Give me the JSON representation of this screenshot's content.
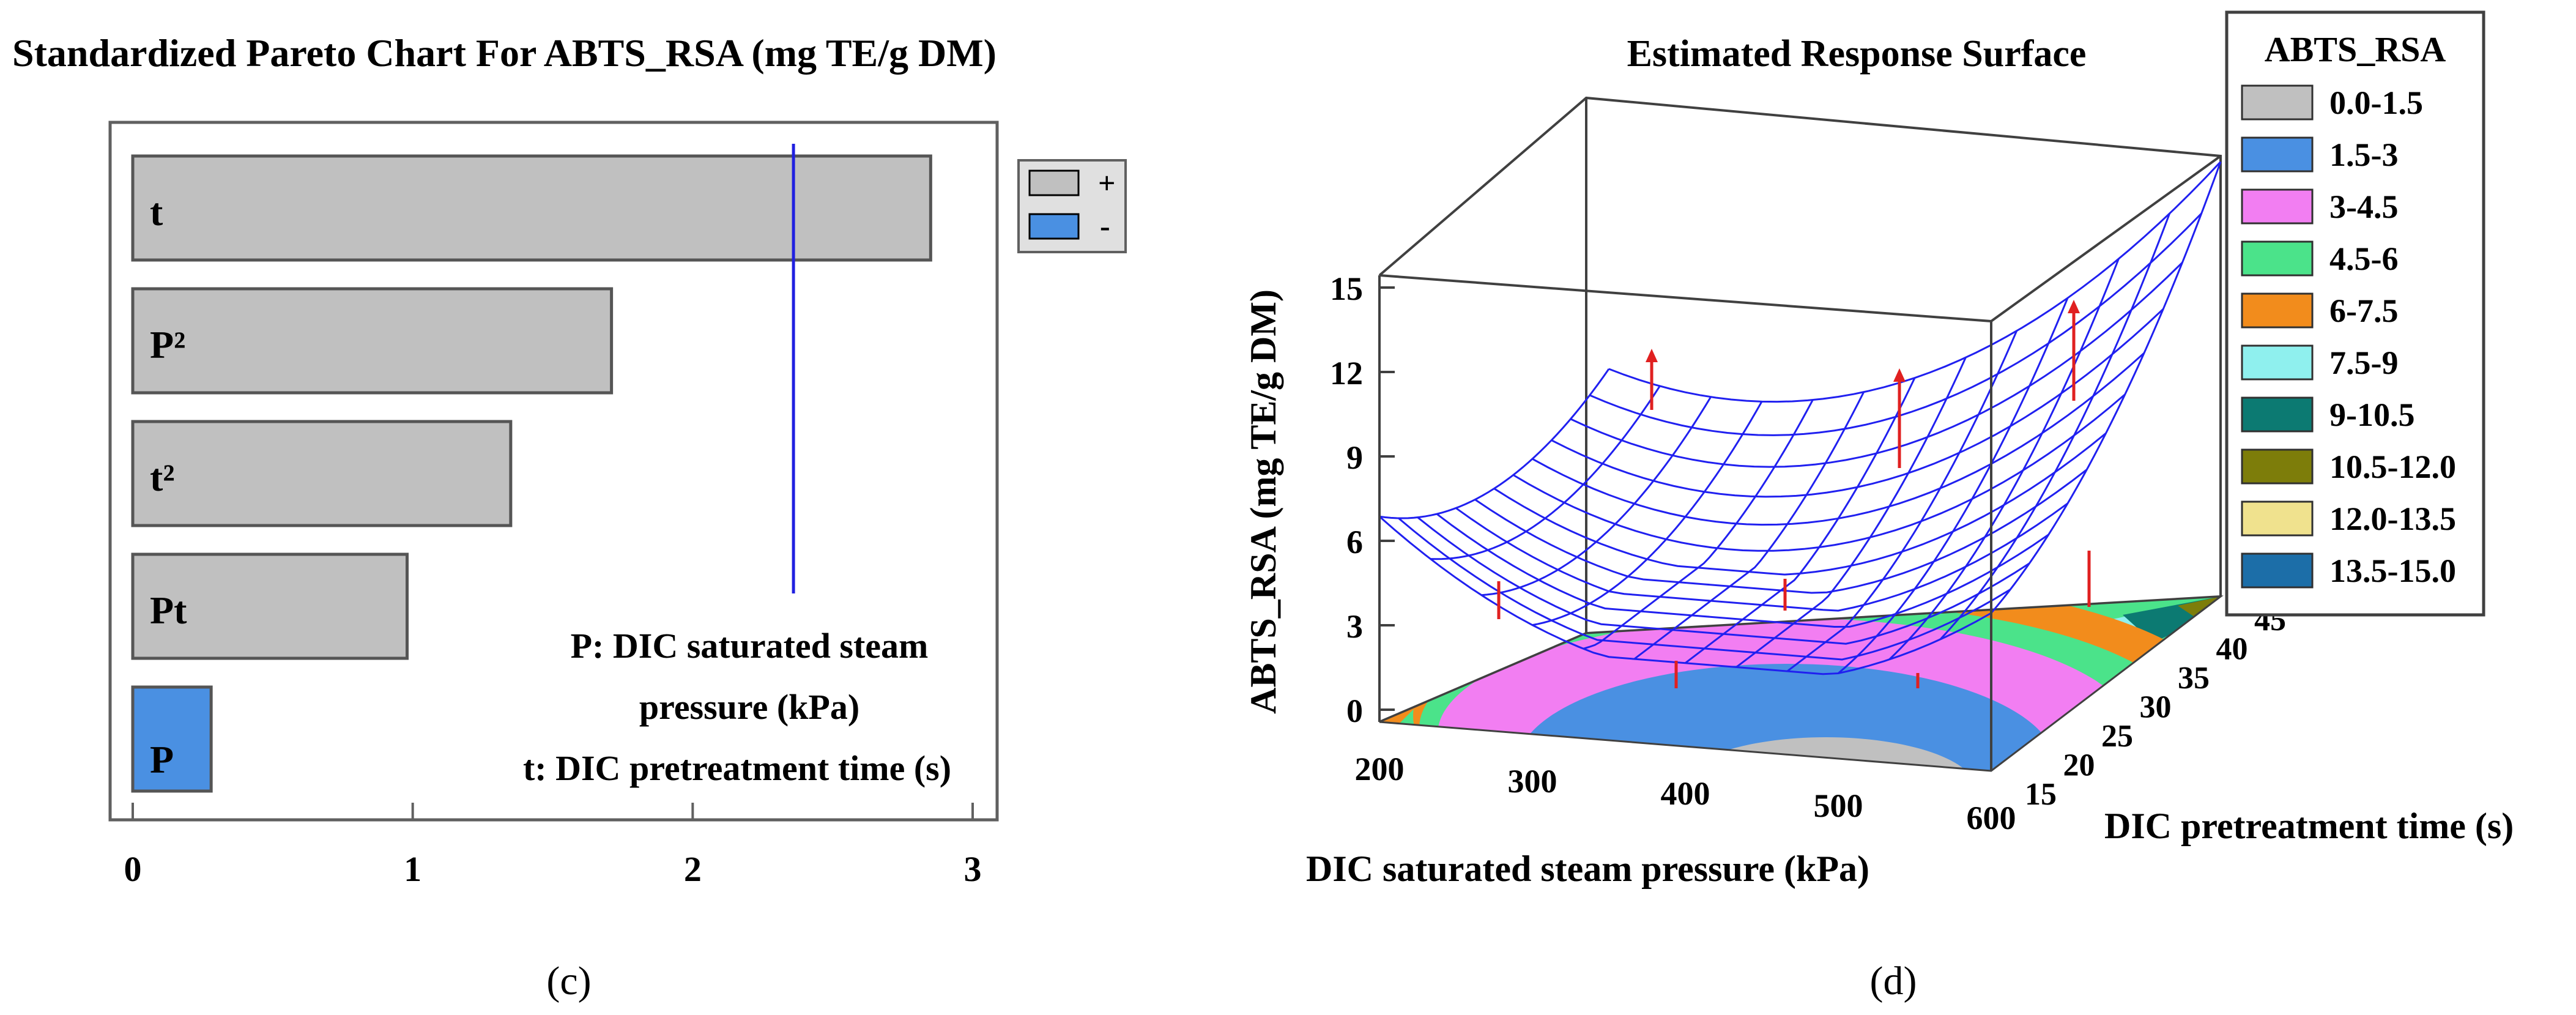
{
  "colors": {
    "positive_bar": "#c0c0c0",
    "negative_bar": "#4a90e2",
    "reference_line": "#2020e0",
    "mesh": "#2020f0",
    "residual": "#e02020"
  },
  "panel_c": {
    "caption": "(c)",
    "legend": [
      {
        "label": "+",
        "color": "#c0c0c0"
      },
      {
        "label": "-",
        "color": "#4a90e2"
      }
    ],
    "notes": [
      "P: DIC saturated steam",
      "pressure (kPa)",
      "t: DIC pretreatment time (s)"
    ]
  },
  "panel_d": {
    "caption": "(d)",
    "legend_title": "ABTS_RSA",
    "legend": [
      {
        "label": "0.0-1.5",
        "color": "#c0c0c0"
      },
      {
        "label": "1.5-3",
        "color": "#4a90e2"
      },
      {
        "label": "3-4.5",
        "color": "#f27ef2"
      },
      {
        "label": "4.5-6",
        "color": "#4be38a"
      },
      {
        "label": "6-7.5",
        "color": "#f28c1c"
      },
      {
        "label": "7.5-9",
        "color": "#8ff0ee"
      },
      {
        "label": "9-10.5",
        "color": "#0c7a72"
      },
      {
        "label": "10.5-12.0",
        "color": "#7d7d0a"
      },
      {
        "label": "12.0-13.5",
        "color": "#f0e28e"
      },
      {
        "label": "13.5-15.0",
        "color": "#1c6ea8"
      }
    ]
  },
  "chart_data": [
    {
      "type": "bar",
      "orientation": "horizontal",
      "title": "Standardized Pareto Chart For ABTS_RSA (mg TE/g DM)",
      "categories": [
        "t",
        "P²",
        "t²",
        "Pt",
        "P"
      ],
      "values": [
        2.85,
        1.71,
        1.35,
        0.98,
        0.28
      ],
      "signs": [
        "+",
        "+",
        "+",
        "+",
        "-"
      ],
      "reference_line": 2.36,
      "xlim": [
        0,
        3
      ],
      "xticks": [
        "0",
        "1",
        "2",
        "3"
      ],
      "xlabel": "",
      "ylabel": ""
    },
    {
      "type": "surface",
      "title": "Estimated Response Surface",
      "xlabel": "DIC saturated steam pressure (kPa)",
      "ylabel": "DIC pretreatment time (s)",
      "zlabel": "ABTS_RSA (mg TE/g DM)",
      "xticks": [
        "200",
        "300",
        "400",
        "500",
        "600"
      ],
      "yticks": [
        "15",
        "20",
        "25",
        "30",
        "35",
        "40",
        "45"
      ],
      "zticks": [
        "0",
        "3",
        "6",
        "9",
        "12",
        "15"
      ],
      "xlim": [
        200,
        600
      ],
      "ylim": [
        15,
        45
      ],
      "zlim": [
        0,
        15
      ],
      "surface_corners": {
        "P200_t15": 6.9,
        "P600_t15": 5.3,
        "P200_t45": 6.0,
        "P600_t45": 14.6,
        "minimum": 2.8
      }
    }
  ]
}
